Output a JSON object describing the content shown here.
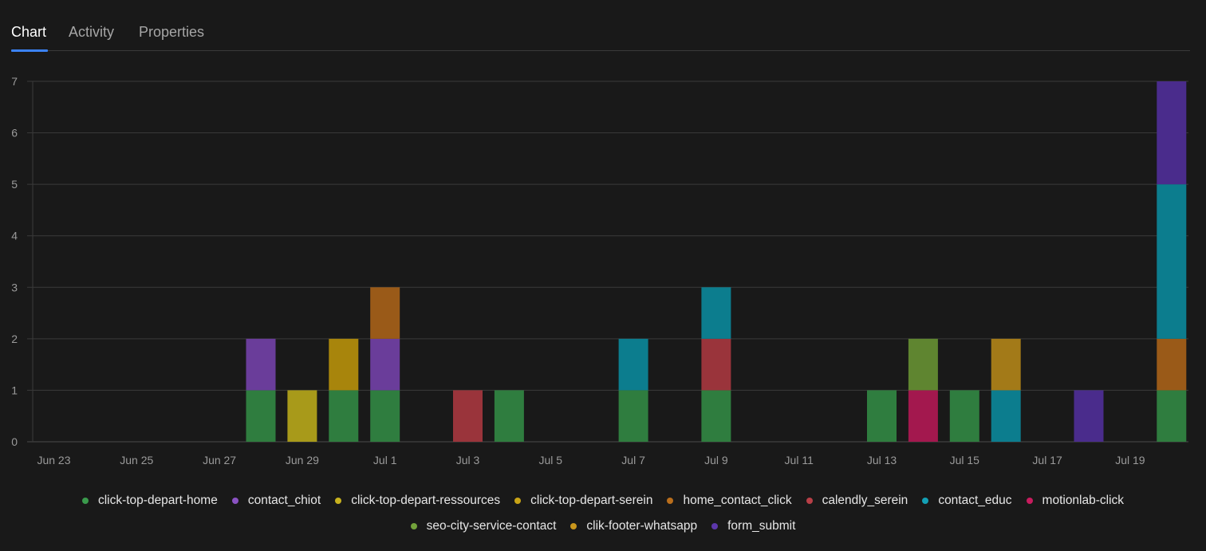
{
  "tabs": [
    {
      "label": "Chart",
      "active": true
    },
    {
      "label": "Activity",
      "active": false
    },
    {
      "label": "Properties",
      "active": false
    }
  ],
  "chart_data": {
    "type": "bar",
    "stacked": true,
    "title": "",
    "xlabel": "",
    "ylabel": "",
    "ylim": [
      0,
      7
    ],
    "y_ticks": [
      "0",
      "1",
      "2",
      "3",
      "4",
      "5",
      "6",
      "7"
    ],
    "grid": true,
    "legend_position": "bottom",
    "categories": [
      "Jun 23",
      "Jun 24",
      "Jun 25",
      "Jun 26",
      "Jun 27",
      "Jun 28",
      "Jun 29",
      "Jun 30",
      "Jul 1",
      "Jul 2",
      "Jul 3",
      "Jul 4",
      "Jul 5",
      "Jul 6",
      "Jul 7",
      "Jul 8",
      "Jul 9",
      "Jul 10",
      "Jul 11",
      "Jul 12",
      "Jul 13",
      "Jul 14",
      "Jul 15",
      "Jul 16",
      "Jul 17",
      "Jul 18",
      "Jul 19",
      "Jul 20"
    ],
    "x_tick_labels": [
      "Jun 23",
      "",
      "Jun 25",
      "",
      "Jun 27",
      "",
      "Jun 29",
      "",
      "Jul 1",
      "",
      "Jul 3",
      "",
      "Jul 5",
      "",
      "Jul 7",
      "",
      "Jul 9",
      "",
      "Jul 11",
      "",
      "Jul 13",
      "",
      "Jul 15",
      "",
      "Jul 17",
      "",
      "Jul 19",
      ""
    ],
    "series": [
      {
        "name": "click-top-depart-home",
        "color": "#2f7d3f",
        "values": [
          0,
          0,
          0,
          0,
          0,
          1,
          0,
          1,
          1,
          0,
          0,
          1,
          0,
          0,
          1,
          0,
          1,
          0,
          0,
          0,
          1,
          0,
          1,
          0,
          0,
          0,
          0,
          1
        ]
      },
      {
        "name": "contact_chiot",
        "color": "#6a3d9a",
        "values": [
          0,
          0,
          0,
          0,
          0,
          1,
          0,
          0,
          1,
          0,
          0,
          0,
          0,
          0,
          0,
          0,
          0,
          0,
          0,
          0,
          0,
          0,
          0,
          0,
          0,
          0,
          0,
          0
        ]
      },
      {
        "name": "click-top-depart-ressources",
        "color": "#a89a1a",
        "values": [
          0,
          0,
          0,
          0,
          0,
          0,
          1,
          0,
          0,
          0,
          0,
          0,
          0,
          0,
          0,
          0,
          0,
          0,
          0,
          0,
          0,
          0,
          0,
          0,
          0,
          0,
          0,
          0
        ]
      },
      {
        "name": "click-top-depart-serein",
        "color": "#a8850c",
        "values": [
          0,
          0,
          0,
          0,
          0,
          0,
          0,
          1,
          0,
          0,
          0,
          0,
          0,
          0,
          0,
          0,
          0,
          0,
          0,
          0,
          0,
          0,
          0,
          0,
          0,
          0,
          0,
          0
        ]
      },
      {
        "name": "home_contact_click",
        "color": "#9a5a18",
        "values": [
          0,
          0,
          0,
          0,
          0,
          0,
          0,
          0,
          1,
          0,
          0,
          0,
          0,
          0,
          0,
          0,
          0,
          0,
          0,
          0,
          0,
          0,
          0,
          0,
          0,
          0,
          0,
          1
        ]
      },
      {
        "name": "calendly_serein",
        "color": "#9a343b",
        "values": [
          0,
          0,
          0,
          0,
          0,
          0,
          0,
          0,
          0,
          0,
          1,
          0,
          0,
          0,
          0,
          0,
          1,
          0,
          0,
          0,
          0,
          0,
          0,
          0,
          0,
          0,
          0,
          0
        ]
      },
      {
        "name": "contact_educ",
        "color": "#0c7d8e",
        "values": [
          0,
          0,
          0,
          0,
          0,
          0,
          0,
          0,
          0,
          0,
          0,
          0,
          0,
          0,
          1,
          0,
          1,
          0,
          0,
          0,
          0,
          0,
          0,
          1,
          0,
          0,
          0,
          3
        ]
      },
      {
        "name": "motionlab-click",
        "color": "#a3184e",
        "values": [
          0,
          0,
          0,
          0,
          0,
          0,
          0,
          0,
          0,
          0,
          0,
          0,
          0,
          0,
          0,
          0,
          0,
          0,
          0,
          0,
          0,
          1,
          0,
          0,
          0,
          0,
          0,
          0
        ]
      },
      {
        "name": "seo-city-service-contact",
        "color": "#5f8530",
        "values": [
          0,
          0,
          0,
          0,
          0,
          0,
          0,
          0,
          0,
          0,
          0,
          0,
          0,
          0,
          0,
          0,
          0,
          0,
          0,
          0,
          0,
          1,
          0,
          0,
          0,
          0,
          0,
          0
        ]
      },
      {
        "name": "clik-footer-whatsapp",
        "color": "#a37a18",
        "values": [
          0,
          0,
          0,
          0,
          0,
          0,
          0,
          0,
          0,
          0,
          0,
          0,
          0,
          0,
          0,
          0,
          0,
          0,
          0,
          0,
          0,
          0,
          0,
          1,
          0,
          0,
          0,
          0
        ]
      },
      {
        "name": "form_submit",
        "color": "#4a2c8c",
        "values": [
          0,
          0,
          0,
          0,
          0,
          0,
          0,
          0,
          0,
          0,
          0,
          0,
          0,
          0,
          0,
          0,
          0,
          0,
          0,
          0,
          0,
          0,
          0,
          0,
          0,
          1,
          0,
          2
        ]
      }
    ]
  },
  "legend": {
    "rows": [
      [
        {
          "label": "click-top-depart-home",
          "dot_color": "#3a9a4c"
        },
        {
          "label": "contact_chiot",
          "dot_color": "#8a52c2"
        },
        {
          "label": "click-top-depart-ressources",
          "dot_color": "#c8b21e"
        },
        {
          "label": "click-top-depart-serein",
          "dot_color": "#c9a416"
        },
        {
          "label": "home_contact_click",
          "dot_color": "#b96e1c"
        },
        {
          "label": "calendly_serein",
          "dot_color": "#b83f47"
        },
        {
          "label": "contact_educ",
          "dot_color": "#13a0b5"
        },
        {
          "label": "motionlab-click",
          "dot_color": "#c81c5e"
        }
      ],
      [
        {
          "label": "seo-city-service-contact",
          "dot_color": "#73a23b"
        },
        {
          "label": "clik-footer-whatsapp",
          "dot_color": "#c9961c"
        },
        {
          "label": "form_submit",
          "dot_color": "#5c37ab"
        }
      ]
    ]
  }
}
